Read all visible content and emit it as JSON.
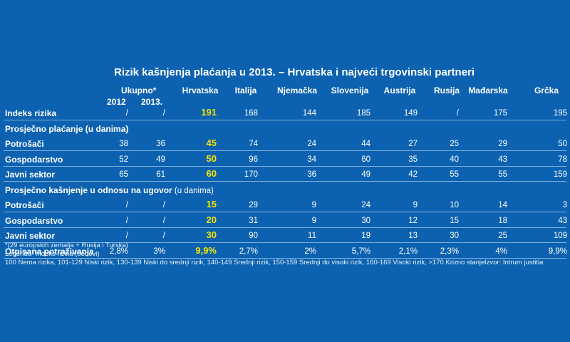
{
  "title": "Rizik kašnjenja plaćanja u 2013. – Hrvatska i najveći trgovinski partneri",
  "chart_data": {
    "type": "table",
    "group_header": "Ukupno*",
    "columns": [
      "2012",
      "2013.",
      "Hrvatska",
      "Italija",
      "Njemačka",
      "Slovenija",
      "Austrija",
      "Rusija",
      "Mađarska",
      "Grčka"
    ],
    "highlight_column": 2,
    "rows": [
      {
        "label": "Indeks rizika",
        "values": [
          "/",
          "/",
          "191",
          "168",
          "144",
          "185",
          "149",
          "/",
          "175",
          "195"
        ]
      },
      {
        "section": "Prosječno plaćanje (u danima)",
        "note": ""
      },
      {
        "label": "Potrošači",
        "values": [
          "38",
          "36",
          "45",
          "74",
          "24",
          "44",
          "27",
          "25",
          "29",
          "50"
        ]
      },
      {
        "label": "Gospodarstvo",
        "values": [
          "52",
          "49",
          "50",
          "96",
          "34",
          "60",
          "35",
          "40",
          "43",
          "78"
        ]
      },
      {
        "label": "Javni sektor",
        "values": [
          "65",
          "61",
          "60",
          "170",
          "36",
          "49",
          "42",
          "55",
          "55",
          "159"
        ]
      },
      {
        "section": "Prosječno kašnjenje u odnosu na ugovor",
        "note": "(u danima)"
      },
      {
        "label": "Potrošači",
        "values": [
          "/",
          "/",
          "15",
          "29",
          "9",
          "24",
          "9",
          "10",
          "14",
          "3"
        ]
      },
      {
        "label": "Gospodarstvo",
        "values": [
          "/",
          "/",
          "20",
          "31",
          "9",
          "30",
          "12",
          "15",
          "18",
          "43"
        ]
      },
      {
        "label": "Javni sektor",
        "values": [
          "/",
          "/",
          "30",
          "90",
          "11",
          "19",
          "13",
          "30",
          "25",
          "109"
        ]
      },
      {
        "label": "Otpisana potraživanja",
        "values": [
          "2,8%",
          "3%",
          "9,9%",
          "2,7%",
          "2%",
          "5,7%",
          "2,1%",
          "2,3%",
          "4%",
          "9,9%"
        ]
      }
    ],
    "highlight_color": "#f6e500",
    "background_color": "#0c62b0"
  },
  "footnotes": {
    "note1": "*(29 europskih zemalja + Rusija i Turska)",
    "note2": "Legenda- Indeks rizika (bodovi)",
    "note3": "100 Nema rizika, 101-129 Niski rizik, 130-139 Niski do srednji rizik, 140-149 Srednji rizik, 150-159 Srednji do visoki rizik, 160-169 Visoki rizik, >170 Krizno stanje",
    "source": "Izvor: Intrum justitia"
  }
}
